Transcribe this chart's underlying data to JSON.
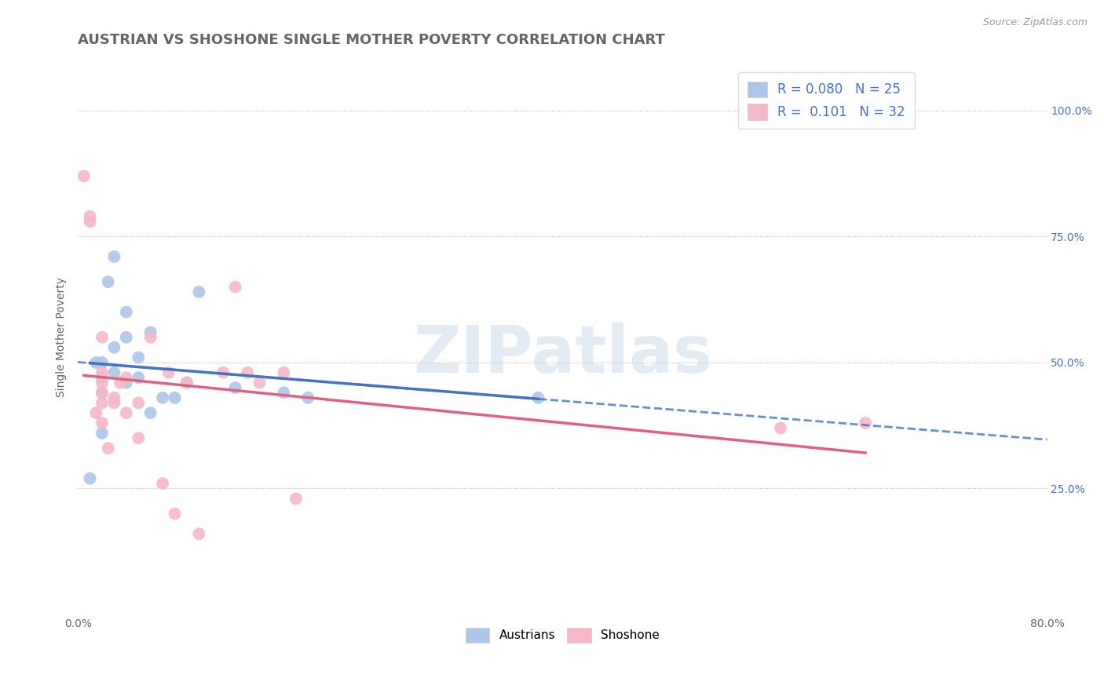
{
  "title": "AUSTRIAN VS SHOSHONE SINGLE MOTHER POVERTY CORRELATION CHART",
  "source": "Source: ZipAtlas.com",
  "ylabel": "Single Mother Poverty",
  "xlim": [
    0.0,
    0.8
  ],
  "ylim": [
    0.0,
    1.1
  ],
  "ytick_positions": [
    0.25,
    0.5,
    0.75,
    1.0
  ],
  "ytick_labels": [
    "25.0%",
    "50.0%",
    "75.0%",
    "100.0%"
  ],
  "xtick_positions": [
    0.0,
    0.8
  ],
  "xtick_labels": [
    "0.0%",
    "80.0%"
  ],
  "watermark": "ZIPatlas",
  "legend_r_austrians": "0.080",
  "legend_n_austrians": "25",
  "legend_r_shoshone": "0.101",
  "legend_n_shoshone": "32",
  "austrians_color": "#aec6e8",
  "shoshone_color": "#f4b8c8",
  "trendline_austrians_color": "#4472c4",
  "trendline_shoshone_color": "#e06080",
  "background_color": "#ffffff",
  "austrians_x": [
    0.01,
    0.015,
    0.02,
    0.02,
    0.02,
    0.02,
    0.025,
    0.03,
    0.03,
    0.03,
    0.04,
    0.04,
    0.04,
    0.05,
    0.05,
    0.06,
    0.06,
    0.07,
    0.08,
    0.09,
    0.1,
    0.13,
    0.17,
    0.19,
    0.38
  ],
  "austrians_y": [
    0.27,
    0.5,
    0.36,
    0.44,
    0.47,
    0.5,
    0.66,
    0.48,
    0.53,
    0.71,
    0.46,
    0.55,
    0.6,
    0.47,
    0.51,
    0.4,
    0.56,
    0.43,
    0.43,
    0.46,
    0.64,
    0.45,
    0.44,
    0.43,
    0.43
  ],
  "shoshone_x": [
    0.005,
    0.01,
    0.01,
    0.015,
    0.02,
    0.02,
    0.02,
    0.02,
    0.02,
    0.02,
    0.025,
    0.03,
    0.03,
    0.035,
    0.04,
    0.04,
    0.05,
    0.05,
    0.06,
    0.07,
    0.075,
    0.08,
    0.09,
    0.1,
    0.12,
    0.13,
    0.14,
    0.15,
    0.17,
    0.18,
    0.58,
    0.65
  ],
  "shoshone_y": [
    0.87,
    0.78,
    0.79,
    0.4,
    0.38,
    0.42,
    0.44,
    0.46,
    0.48,
    0.55,
    0.33,
    0.42,
    0.43,
    0.46,
    0.4,
    0.47,
    0.35,
    0.42,
    0.55,
    0.26,
    0.48,
    0.2,
    0.46,
    0.16,
    0.48,
    0.65,
    0.48,
    0.46,
    0.48,
    0.23,
    0.37,
    0.38
  ],
  "title_fontsize": 13,
  "label_fontsize": 10,
  "tick_fontsize": 10,
  "legend_fontsize": 12
}
